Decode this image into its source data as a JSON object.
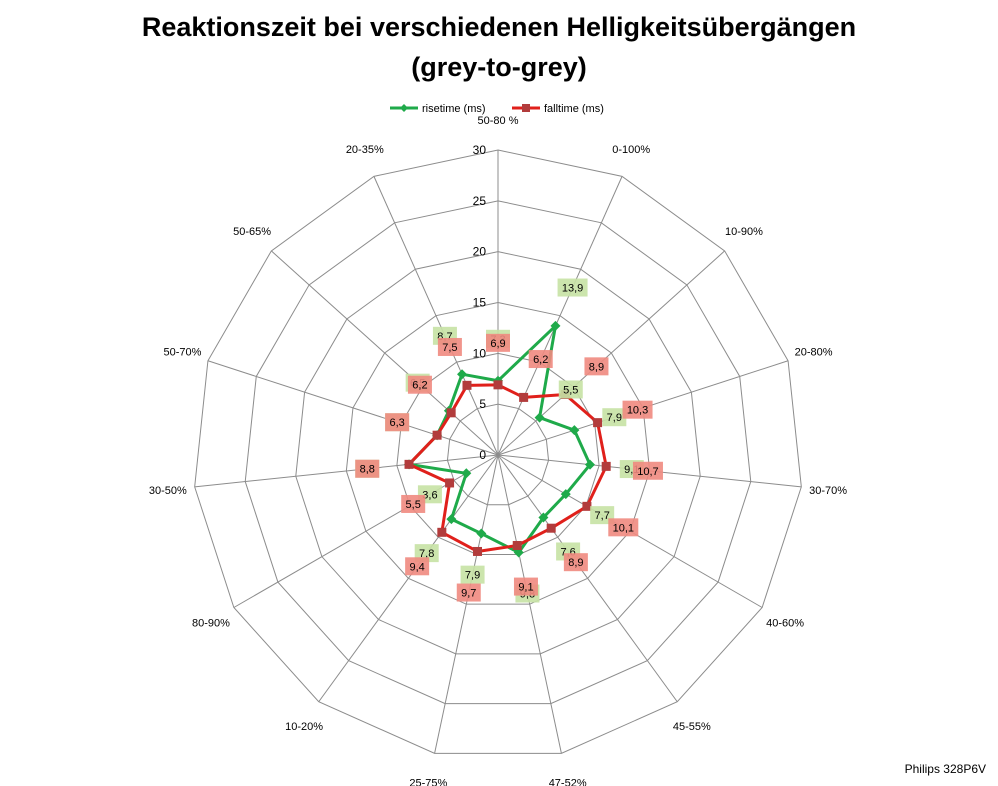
{
  "chart_data": {
    "type": "radar",
    "title": "Reaktionszeit bei verschiedenen Helligkeitsübergängen",
    "subtitle": "(grey-to-grey)",
    "categories": [
      "50-80 %",
      "0-100%",
      "10-90%",
      "20-80%",
      "30-70%",
      "40-60%",
      "45-55%",
      "47-52%",
      "25-75%",
      "10-20%",
      "80-90%",
      "30-50%",
      "50-70%",
      "50-65%",
      "20-35%"
    ],
    "axis_ticks": [
      "0",
      "5",
      "10",
      "15",
      "20",
      "25",
      "30"
    ],
    "rlim": [
      0,
      30
    ],
    "legend_position": "top",
    "series": [
      {
        "name": "risetime (ms)",
        "color": "#1faa4a",
        "label_bg": "#c6e2a4",
        "values": [
          7.3,
          13.9,
          5.5,
          7.9,
          9.1,
          7.7,
          7.6,
          9.8,
          7.9,
          7.8,
          3.6,
          8.8,
          6.3,
          6.5,
          8.7
        ],
        "labels": [
          "7,3",
          "13,9",
          "5,5",
          "7,9",
          "9,1",
          "7,7",
          "7,6",
          "9,8",
          "7,9",
          "7,8",
          "3,6",
          "8,8",
          "6,3",
          "6,5",
          "8,7"
        ]
      },
      {
        "name": "falltime (ms)",
        "color": "#e0201b",
        "label_bg": "#f08a80",
        "values": [
          6.9,
          6.2,
          8.9,
          10.3,
          10.7,
          10.1,
          8.9,
          9.1,
          9.7,
          9.4,
          5.5,
          8.8,
          6.3,
          6.2,
          7.5
        ],
        "labels": [
          "6,9",
          "6,2",
          "8,9",
          "10,3",
          "10,7",
          "10,1",
          "8,9",
          "9,1",
          "9,7",
          "9,4",
          "5,5",
          "8,8",
          "6,3",
          "6,2",
          "7,5"
        ]
      }
    ]
  },
  "footer": "Philips 328P6V"
}
